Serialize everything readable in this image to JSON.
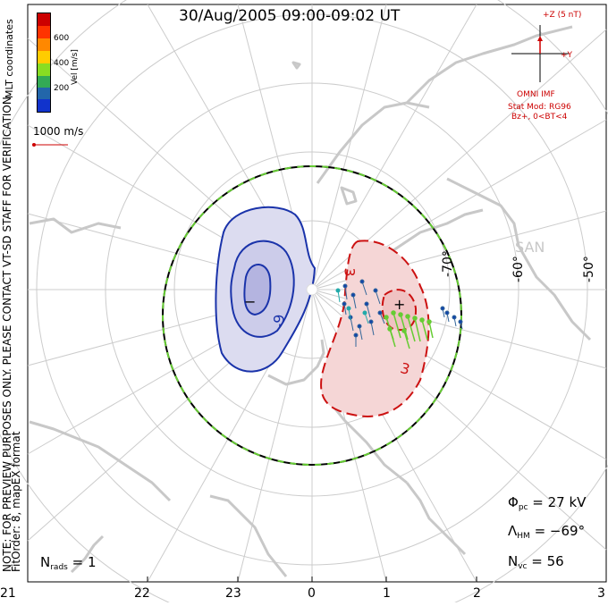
{
  "title": "30/Aug/2005 09:00-09:02 UT",
  "colorbar": {
    "label": "Vel [m/s]",
    "ticks": [
      "600",
      "400",
      "200"
    ],
    "colors": [
      "#cc0000",
      "#ff3300",
      "#ff8800",
      "#ffcc00",
      "#88dd22",
      "#33aa55",
      "#2266aa",
      "#1133cc"
    ]
  },
  "coords_label": "MLT coordinates",
  "ref_vector": "1000 m/s",
  "note": "NOTE: FOR PREVIEW PURPOSES ONLY. PLEASE CONTACT VT-SD STAFF FOR VERIFICATION.",
  "fit_info": "FitOrder: 8, mapEX format",
  "imf": {
    "z_label": "+Z (5 nT)",
    "y_label": "+Y",
    "source": "OMNI IMF",
    "model": "Stat Mod: RG96",
    "condition": "Bz+, 0<BT<4"
  },
  "station": "SAN",
  "lat_labels": [
    "-50°",
    "-60°",
    "-70°"
  ],
  "contours": {
    "negative_label": "-9",
    "positive_label": "3",
    "positive_label_2": "3",
    "min_marker": "−",
    "max_marker": "+"
  },
  "stats": {
    "phi_symbol": "Φ",
    "phi_sub": "pc",
    "phi_value": "= 27 kV",
    "lambda_symbol": "Λ",
    "lambda_sub": "HM",
    "lambda_value": "= −69°",
    "nvc_symbol": "N",
    "nvc_sub": "vc",
    "nvc_value": "= 56",
    "nrads_symbol": "N",
    "nrads_sub": "rads",
    "nrads_value": "= 1"
  },
  "mlt_ticks": [
    "21",
    "22",
    "23",
    "0",
    "1",
    "2",
    "3"
  ],
  "colors": {
    "negative_fill": "#dcdcf0",
    "negative_line": "#1a33aa",
    "positive_fill": "#f5d6d6",
    "positive_line": "#cc1111",
    "grid": "#cccccc",
    "coast": "#c8c8c8",
    "hmb": "#66cc33"
  }
}
